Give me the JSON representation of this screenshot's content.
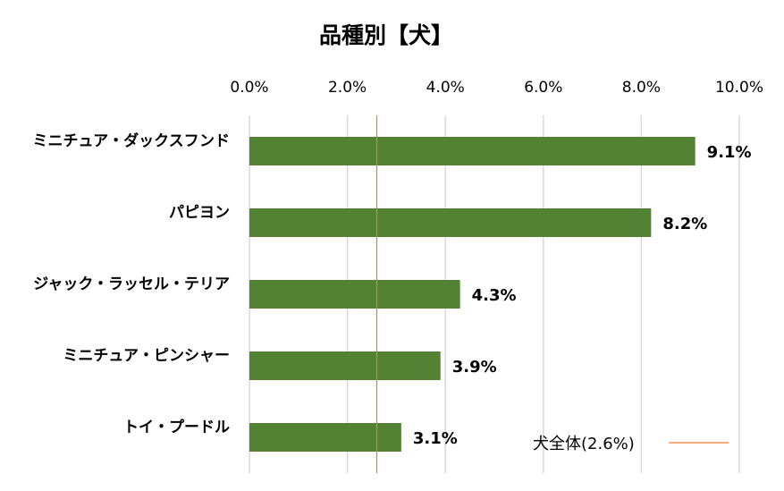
{
  "chart_data": {
    "type": "bar",
    "orientation": "horizontal",
    "title": "品種別【犬】",
    "categories": [
      "ミニチュア・ダックスフンド",
      "パピヨン",
      "ジャック・ラッセル・テリア",
      "ミニチュア・ピンシャー",
      "トイ・プードル"
    ],
    "values": [
      9.1,
      8.2,
      4.3,
      3.9,
      3.1
    ],
    "data_labels": [
      "9.1%",
      "8.2%",
      "4.3%",
      "3.9%",
      "3.1%"
    ],
    "x_ticks": [
      0,
      2,
      4,
      6,
      8,
      10
    ],
    "x_tick_labels": [
      "0.0%",
      "2.0%",
      "4.0%",
      "6.0%",
      "8.0%",
      "10.0%"
    ],
    "xlim": [
      0,
      10
    ],
    "x_axis_position": "top",
    "grid": true,
    "bar_color": "#548235",
    "reference_line": {
      "label": "犬全体(2.6%)",
      "value": 2.6,
      "color": "#ED7D31"
    },
    "legend_position": "bottom-right"
  }
}
